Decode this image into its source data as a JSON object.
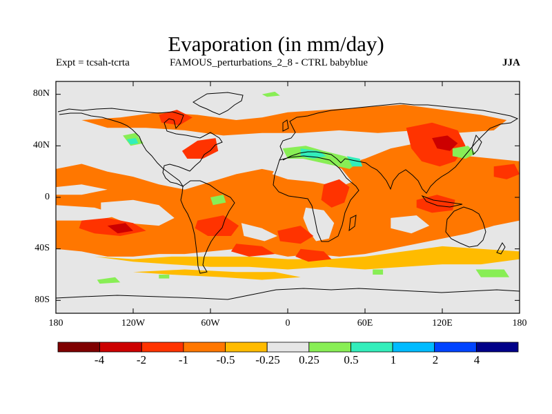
{
  "title": "Evaporation (in mm/day)",
  "subtitle_left": "Expt = tcsah-tcrta",
  "subtitle_center": "FAMOUS_perturbations_2_8 - CTRL babyblue",
  "season": "JJA",
  "map": {
    "lon_range": [
      -180,
      180
    ],
    "lat_range": [
      -90,
      90
    ],
    "background_color": "#e6e6e6",
    "y_ticks": [
      {
        "lat": 80,
        "label": "80N"
      },
      {
        "lat": 40,
        "label": "40N"
      },
      {
        "lat": 0,
        "label": "0"
      },
      {
        "lat": -40,
        "label": "40S"
      },
      {
        "lat": -80,
        "label": "80S"
      }
    ],
    "x_ticks": [
      {
        "lon": -180,
        "label": "180"
      },
      {
        "lon": -120,
        "label": "120W"
      },
      {
        "lon": -60,
        "label": "60W"
      },
      {
        "lon": 0,
        "label": "0"
      },
      {
        "lon": 60,
        "label": "60E"
      },
      {
        "lon": 120,
        "label": "120E"
      },
      {
        "lon": 180,
        "label": "180"
      }
    ]
  },
  "colorbar": {
    "colors": [
      "#7f0000",
      "#cc0000",
      "#ff3300",
      "#ff7700",
      "#ffbb00",
      "#e6e6e6",
      "#88ee55",
      "#33eebb",
      "#00bbff",
      "#0044ff",
      "#000088"
    ],
    "labels": [
      "-4",
      "-2",
      "-1",
      "-0.5",
      "-0.25",
      "0.25",
      "0.5",
      "1",
      "2",
      "4"
    ]
  },
  "regions": [
    {
      "c": "#ff7700",
      "pts": [
        [
          -180,
          22
        ],
        [
          -160,
          26
        ],
        [
          -140,
          20
        ],
        [
          -120,
          16
        ],
        [
          -100,
          10
        ],
        [
          -80,
          6
        ],
        [
          -60,
          12
        ],
        [
          -40,
          18
        ],
        [
          -20,
          22
        ],
        [
          0,
          18
        ],
        [
          20,
          14
        ],
        [
          40,
          24
        ],
        [
          60,
          30
        ],
        [
          80,
          38
        ],
        [
          100,
          42
        ],
        [
          120,
          38
        ],
        [
          140,
          32
        ],
        [
          160,
          30
        ],
        [
          180,
          28
        ],
        [
          180,
          -18
        ],
        [
          160,
          -22
        ],
        [
          140,
          -28
        ],
        [
          120,
          -32
        ],
        [
          100,
          -36
        ],
        [
          80,
          -40
        ],
        [
          60,
          -44
        ],
        [
          40,
          -46
        ],
        [
          20,
          -44
        ],
        [
          0,
          -46
        ],
        [
          -20,
          -42
        ],
        [
          -40,
          -40
        ],
        [
          -60,
          -42
        ],
        [
          -80,
          -44
        ],
        [
          -100,
          -44
        ],
        [
          -120,
          -46
        ],
        [
          -140,
          -46
        ],
        [
          -160,
          -42
        ],
        [
          -180,
          -40
        ]
      ]
    },
    {
      "c": "#ff7700",
      "pts": [
        [
          -160,
          60
        ],
        [
          -130,
          62
        ],
        [
          -100,
          66
        ],
        [
          -70,
          64
        ],
        [
          -40,
          60
        ],
        [
          -20,
          62
        ],
        [
          0,
          66
        ],
        [
          30,
          68
        ],
        [
          60,
          70
        ],
        [
          90,
          72
        ],
        [
          120,
          68
        ],
        [
          150,
          64
        ],
        [
          170,
          60
        ],
        [
          160,
          52
        ],
        [
          130,
          50
        ],
        [
          100,
          52
        ],
        [
          70,
          50
        ],
        [
          40,
          52
        ],
        [
          10,
          50
        ],
        [
          -20,
          50
        ],
        [
          -50,
          48
        ],
        [
          -80,
          52
        ],
        [
          -110,
          54
        ],
        [
          -140,
          54
        ]
      ]
    },
    {
      "c": "#ffbb00",
      "pts": [
        [
          -180,
          -40
        ],
        [
          -150,
          -46
        ],
        [
          -120,
          -50
        ],
        [
          -90,
          -52
        ],
        [
          -60,
          -54
        ],
        [
          -30,
          -54
        ],
        [
          0,
          -56
        ],
        [
          30,
          -54
        ],
        [
          60,
          -56
        ],
        [
          90,
          -54
        ],
        [
          120,
          -52
        ],
        [
          150,
          -52
        ],
        [
          180,
          -48
        ],
        [
          180,
          -42
        ],
        [
          150,
          -40
        ],
        [
          120,
          -38
        ],
        [
          90,
          -42
        ],
        [
          60,
          -46
        ],
        [
          30,
          -48
        ],
        [
          0,
          -48
        ],
        [
          -30,
          -46
        ],
        [
          -60,
          -46
        ],
        [
          -90,
          -46
        ],
        [
          -120,
          -48
        ],
        [
          -150,
          -46
        ]
      ]
    },
    {
      "c": "#ffbb00",
      "pts": [
        [
          -120,
          -58
        ],
        [
          -90,
          -60
        ],
        [
          -50,
          -62
        ],
        [
          -20,
          -64
        ],
        [
          10,
          -62
        ],
        [
          -10,
          -58
        ],
        [
          -40,
          -58
        ],
        [
          -80,
          -56
        ]
      ]
    },
    {
      "c": "#e6e6e6",
      "pts": [
        [
          -145,
          -4
        ],
        [
          -120,
          -2
        ],
        [
          -100,
          -6
        ],
        [
          -88,
          -16
        ],
        [
          -100,
          -22
        ],
        [
          -125,
          -20
        ],
        [
          -145,
          -12
        ]
      ]
    },
    {
      "c": "#e6e6e6",
      "pts": [
        [
          -180,
          8
        ],
        [
          -160,
          10
        ],
        [
          -140,
          6
        ],
        [
          -160,
          2
        ],
        [
          -180,
          2
        ]
      ]
    },
    {
      "c": "#e6e6e6",
      "pts": [
        [
          -180,
          -6
        ],
        [
          -150,
          -8
        ],
        [
          -130,
          -14
        ],
        [
          -150,
          -18
        ],
        [
          -180,
          -18
        ]
      ]
    },
    {
      "c": "#e6e6e6",
      "pts": [
        [
          -8,
          26
        ],
        [
          10,
          30
        ],
        [
          30,
          28
        ],
        [
          42,
          22
        ],
        [
          50,
          12
        ],
        [
          40,
          8
        ],
        [
          20,
          12
        ],
        [
          0,
          14
        ],
        [
          -12,
          18
        ]
      ]
    },
    {
      "c": "#e6e6e6",
      "pts": [
        [
          14,
          -8
        ],
        [
          28,
          -10
        ],
        [
          36,
          -20
        ],
        [
          32,
          -32
        ],
        [
          22,
          -34
        ],
        [
          16,
          -26
        ],
        [
          12,
          -16
        ]
      ]
    },
    {
      "c": "#e6e6e6",
      "pts": [
        [
          -36,
          -20
        ],
        [
          -20,
          -24
        ],
        [
          -8,
          -30
        ],
        [
          -18,
          -34
        ],
        [
          -34,
          -30
        ]
      ]
    },
    {
      "c": "#e6e6e6",
      "pts": [
        [
          80,
          -16
        ],
        [
          100,
          -14
        ],
        [
          110,
          -22
        ],
        [
          96,
          -28
        ],
        [
          80,
          -24
        ]
      ]
    },
    {
      "c": "#e6e6e6",
      "pts": [
        [
          -118,
          44
        ],
        [
          -100,
          48
        ],
        [
          -88,
          42
        ],
        [
          -98,
          32
        ],
        [
          -112,
          30
        ],
        [
          -120,
          36
        ]
      ]
    },
    {
      "c": "#e6e6e6",
      "pts": [
        [
          -172,
          38
        ],
        [
          -160,
          40
        ],
        [
          -148,
          34
        ],
        [
          -156,
          28
        ],
        [
          -170,
          30
        ]
      ]
    },
    {
      "c": "#ff3300",
      "pts": [
        [
          92,
          54
        ],
        [
          112,
          58
        ],
        [
          132,
          52
        ],
        [
          138,
          40
        ],
        [
          130,
          28
        ],
        [
          118,
          24
        ],
        [
          104,
          28
        ],
        [
          96,
          38
        ]
      ]
    },
    {
      "c": "#cc0000",
      "pts": [
        [
          112,
          46
        ],
        [
          124,
          48
        ],
        [
          132,
          42
        ],
        [
          126,
          36
        ],
        [
          116,
          38
        ]
      ]
    },
    {
      "c": "#ff3300",
      "pts": [
        [
          28,
          10
        ],
        [
          40,
          14
        ],
        [
          48,
          8
        ],
        [
          44,
          -4
        ],
        [
          34,
          -8
        ],
        [
          26,
          -2
        ]
      ]
    },
    {
      "c": "#ff3300",
      "pts": [
        [
          -160,
          -18
        ],
        [
          -140,
          -16
        ],
        [
          -120,
          -20
        ],
        [
          -110,
          -26
        ],
        [
          -130,
          -30
        ],
        [
          -150,
          -28
        ],
        [
          -162,
          -24
        ]
      ]
    },
    {
      "c": "#ff3300",
      "pts": [
        [
          -70,
          -18
        ],
        [
          -50,
          -14
        ],
        [
          -38,
          -22
        ],
        [
          -44,
          -30
        ],
        [
          -62,
          -30
        ],
        [
          -72,
          -24
        ]
      ]
    },
    {
      "c": "#ff3300",
      "pts": [
        [
          -8,
          -26
        ],
        [
          10,
          -22
        ],
        [
          20,
          -30
        ],
        [
          10,
          -36
        ],
        [
          -6,
          -34
        ]
      ]
    },
    {
      "c": "#ff3300",
      "pts": [
        [
          -82,
          36
        ],
        [
          -70,
          44
        ],
        [
          -56,
          46
        ],
        [
          -54,
          36
        ],
        [
          -66,
          30
        ],
        [
          -78,
          30
        ]
      ]
    },
    {
      "c": "#ff3300",
      "pts": [
        [
          -40,
          -36
        ],
        [
          -20,
          -38
        ],
        [
          -10,
          -44
        ],
        [
          -30,
          -46
        ],
        [
          -44,
          -42
        ]
      ]
    },
    {
      "c": "#ff3300",
      "pts": [
        [
          10,
          -40
        ],
        [
          28,
          -42
        ],
        [
          34,
          -48
        ],
        [
          16,
          -50
        ],
        [
          6,
          -46
        ]
      ]
    },
    {
      "c": "#ff3300",
      "pts": [
        [
          100,
          -2
        ],
        [
          116,
          2
        ],
        [
          130,
          -2
        ],
        [
          128,
          -10
        ],
        [
          112,
          -12
        ],
        [
          100,
          -8
        ]
      ]
    },
    {
      "c": "#ff3300",
      "pts": [
        [
          -100,
          64
        ],
        [
          -86,
          68
        ],
        [
          -74,
          62
        ],
        [
          -84,
          56
        ],
        [
          -98,
          58
        ]
      ]
    },
    {
      "c": "#ff3300",
      "pts": [
        [
          160,
          24
        ],
        [
          176,
          26
        ],
        [
          180,
          18
        ],
        [
          170,
          14
        ],
        [
          160,
          16
        ]
      ]
    },
    {
      "c": "#cc0000",
      "pts": [
        [
          -140,
          -22
        ],
        [
          -126,
          -20
        ],
        [
          -120,
          -26
        ],
        [
          -132,
          -28
        ]
      ]
    },
    {
      "c": "#88ee55",
      "pts": [
        [
          -4,
          38
        ],
        [
          14,
          40
        ],
        [
          28,
          36
        ],
        [
          44,
          32
        ],
        [
          56,
          28
        ],
        [
          48,
          22
        ],
        [
          30,
          26
        ],
        [
          12,
          30
        ],
        [
          0,
          30
        ]
      ]
    },
    {
      "c": "#33eebb",
      "pts": [
        [
          10,
          38
        ],
        [
          24,
          36
        ],
        [
          30,
          32
        ],
        [
          20,
          30
        ],
        [
          10,
          32
        ]
      ]
    },
    {
      "c": "#33eebb",
      "pts": [
        [
          46,
          32
        ],
        [
          56,
          30
        ],
        [
          58,
          24
        ],
        [
          50,
          24
        ]
      ]
    },
    {
      "c": "#88ee55",
      "pts": [
        [
          -128,
          48
        ],
        [
          -118,
          50
        ],
        [
          -112,
          42
        ],
        [
          -122,
          40
        ]
      ]
    },
    {
      "c": "#33eebb",
      "pts": [
        [
          -125,
          45
        ],
        [
          -118,
          46
        ],
        [
          -116,
          42
        ],
        [
          -122,
          41
        ]
      ]
    },
    {
      "c": "#88ee55",
      "pts": [
        [
          128,
          38
        ],
        [
          140,
          40
        ],
        [
          146,
          34
        ],
        [
          138,
          30
        ],
        [
          128,
          32
        ]
      ]
    },
    {
      "c": "#88ee55",
      "pts": [
        [
          -60,
          0
        ],
        [
          -50,
          2
        ],
        [
          -48,
          -4
        ],
        [
          -58,
          -6
        ]
      ]
    },
    {
      "c": "#88ee55",
      "pts": [
        [
          146,
          -56
        ],
        [
          168,
          -56
        ],
        [
          172,
          -62
        ],
        [
          150,
          -62
        ]
      ]
    },
    {
      "c": "#88ee55",
      "pts": [
        [
          -148,
          -64
        ],
        [
          -134,
          -62
        ],
        [
          -130,
          -66
        ],
        [
          -146,
          -67
        ]
      ]
    },
    {
      "c": "#88ee55",
      "pts": [
        [
          -100,
          -60
        ],
        [
          -92,
          -60
        ],
        [
          -92,
          -63
        ],
        [
          -100,
          -63
        ]
      ]
    },
    {
      "c": "#88ee55",
      "pts": [
        [
          -20,
          80
        ],
        [
          -10,
          82
        ],
        [
          -6,
          79
        ],
        [
          -16,
          78
        ]
      ]
    },
    {
      "c": "#88ee55",
      "pts": [
        [
          66,
          -56
        ],
        [
          74,
          -56
        ],
        [
          74,
          -60
        ],
        [
          66,
          -60
        ]
      ]
    }
  ]
}
